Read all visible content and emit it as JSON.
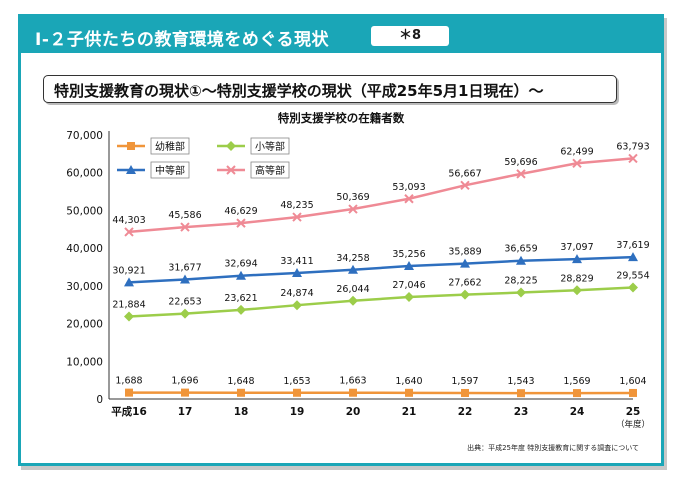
{
  "header": {
    "title": "Ⅰ-２子供たちの教育環境をめぐる現状",
    "badge": "＊8"
  },
  "section_title": "特別支援教育の現状①～特別支援学校の現状（平成25年5月1日現在）～",
  "source": "出典：平成25年度 特別支援教育に関する調査について",
  "colors": {
    "accent": "#1aa6b7",
    "kindergarten": "#f0953a",
    "elementary": "#9ccd4a",
    "junior_high": "#2e6fbf",
    "high_school": "#ef8a95"
  },
  "chart_data": {
    "type": "line",
    "title": "特別支援学校の在籍者数",
    "categories": [
      "平成16",
      "17",
      "18",
      "19",
      "20",
      "21",
      "22",
      "23",
      "24",
      "25"
    ],
    "x_unit": "（年度）",
    "y_ticks": [
      "70,000",
      "60,000",
      "50,000",
      "40,000",
      "30,000",
      "20,000",
      "10,000",
      "0"
    ],
    "ylim": [
      0,
      70000
    ],
    "grid": false,
    "legend_position": "top-left",
    "series": [
      {
        "name": "幼稚部",
        "marker": "square",
        "color": "#f0953a",
        "values": [
          1688,
          1696,
          1648,
          1653,
          1663,
          1640,
          1597,
          1543,
          1569,
          1604
        ],
        "labels": [
          "1,688",
          "1,696",
          "1,648",
          "1,653",
          "1,663",
          "1,640",
          "1,597",
          "1,543",
          "1,569",
          "1,604"
        ]
      },
      {
        "name": "小等部",
        "marker": "diamond",
        "color": "#9ccd4a",
        "values": [
          21884,
          22653,
          23621,
          24874,
          26044,
          27046,
          27662,
          28225,
          28829,
          29554
        ],
        "labels": [
          "21,884",
          "22,653",
          "23,621",
          "24,874",
          "26,044",
          "27,046",
          "27,662",
          "28,225",
          "28,829",
          "29,554"
        ]
      },
      {
        "name": "中等部",
        "marker": "triangle",
        "color": "#2e6fbf",
        "values": [
          30921,
          31677,
          32694,
          33411,
          34258,
          35256,
          35889,
          36659,
          37097,
          37619
        ],
        "labels": [
          "30,921",
          "31,677",
          "32,694",
          "33,411",
          "34,258",
          "35,256",
          "35,889",
          "36,659",
          "37,097",
          "37,619"
        ]
      },
      {
        "name": "高等部",
        "marker": "cross",
        "color": "#ef8a95",
        "values": [
          44303,
          45586,
          46629,
          48235,
          50369,
          53093,
          56667,
          59696,
          62499,
          63793
        ],
        "labels": [
          "44,303",
          "45,586",
          "46,629",
          "48,235",
          "50,369",
          "53,093",
          "56,667",
          "59,696",
          "62,499",
          "63,793"
        ]
      }
    ]
  }
}
